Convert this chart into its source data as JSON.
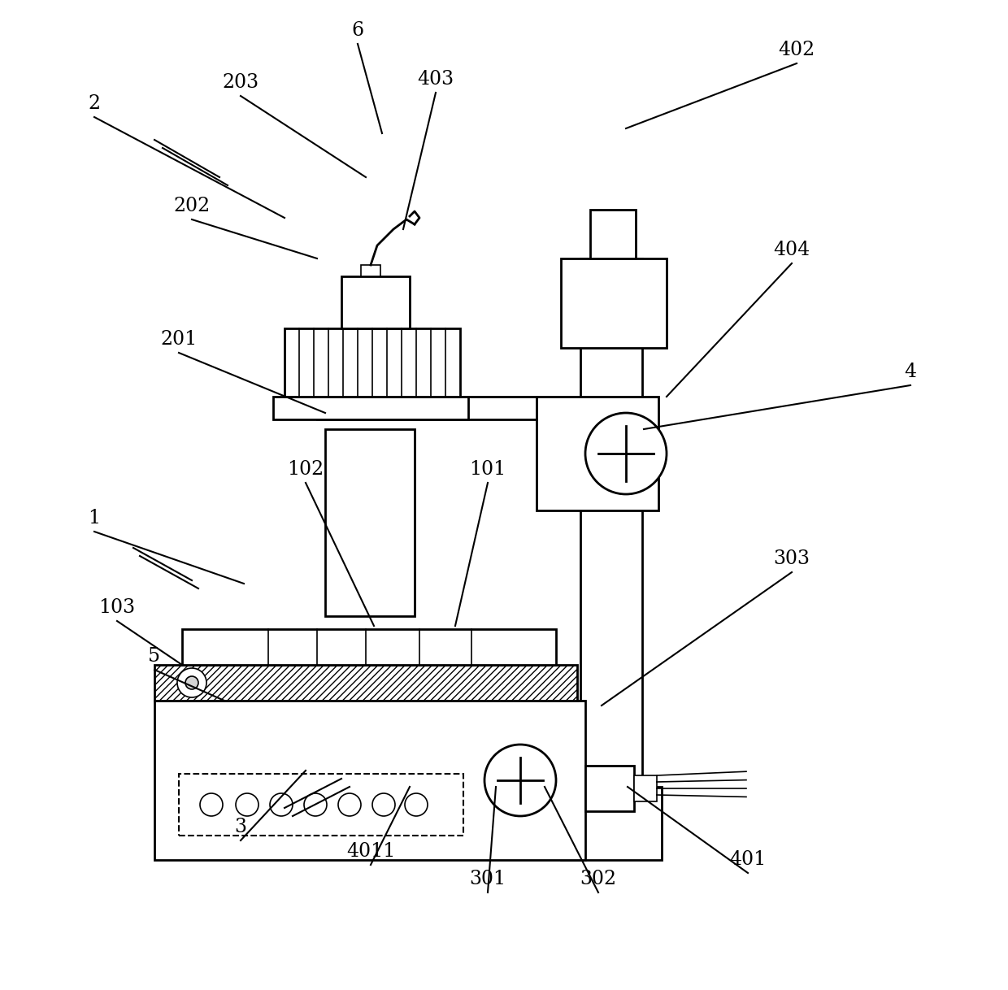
{
  "bg_color": "#ffffff",
  "line_color": "#000000",
  "lw": 2.0,
  "lw_thin": 1.2,
  "fig_width": 12.4,
  "fig_height": 12.18,
  "fontsize": 17
}
